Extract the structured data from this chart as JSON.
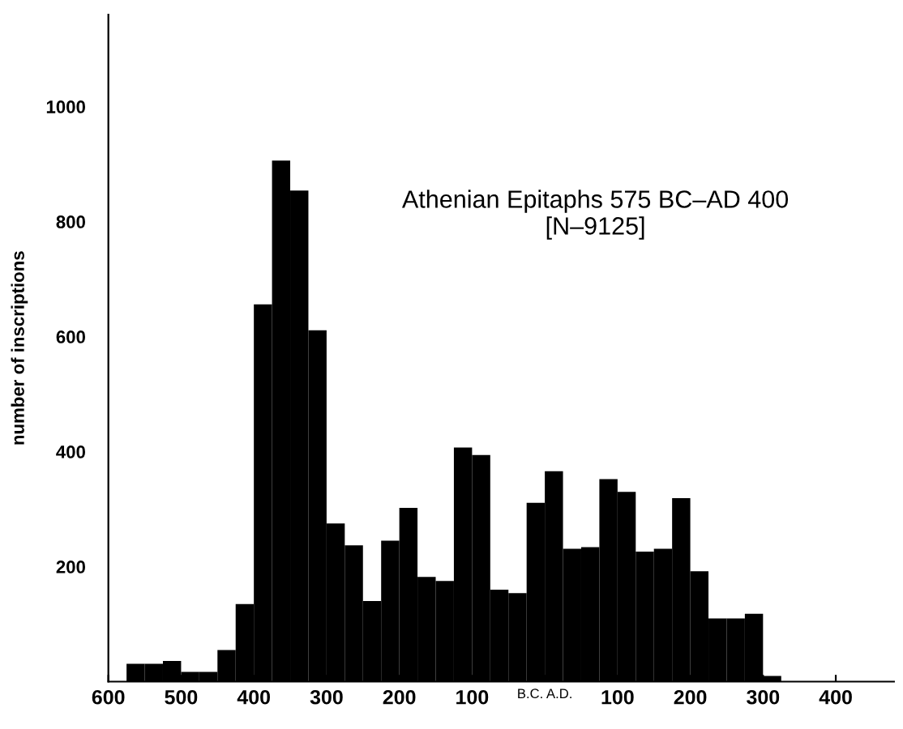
{
  "chart_data": {
    "type": "histogram",
    "title": "Athenian Epitaphs 575 BC–AD 400\n[N–9125]",
    "ylabel": "number of inscriptions",
    "color": "#000000",
    "bins": [
      -575,
      -550,
      -525,
      -500,
      -475,
      -450,
      -425,
      -400,
      -375,
      -350,
      -325,
      -300,
      -275,
      -250,
      -225,
      -200,
      -175,
      -150,
      -125,
      -100,
      -75,
      -50,
      -25,
      0,
      25,
      50,
      75,
      100,
      125,
      150,
      175,
      200,
      225,
      250,
      275,
      300,
      325,
      350,
      375,
      400
    ],
    "values": [
      31,
      31,
      36,
      17,
      17,
      55,
      135,
      656,
      906,
      854,
      611,
      275,
      237,
      140,
      245,
      302,
      182,
      175,
      407,
      394,
      160,
      154,
      311,
      366,
      231,
      234,
      352,
      330,
      226,
      231,
      319,
      192,
      110,
      110,
      118,
      10,
      null,
      null,
      null
    ],
    "xlim": [
      -600,
      480
    ],
    "ylim": [
      0,
      1160
    ],
    "xticks": [
      {
        "value": -600,
        "label": "600"
      },
      {
        "value": -500,
        "label": "500"
      },
      {
        "value": -400,
        "label": "400"
      },
      {
        "value": -300,
        "label": "300"
      },
      {
        "value": -200,
        "label": "200"
      },
      {
        "value": -100,
        "label": "100"
      },
      {
        "value": 0,
        "label": null
      },
      100,
      200,
      300,
      400
    ],
    "yticks": [
      200,
      400,
      600,
      800,
      1000
    ],
    "annotations": [
      "B.C. A.D."
    ],
    "grid": false,
    "legend": false
  }
}
